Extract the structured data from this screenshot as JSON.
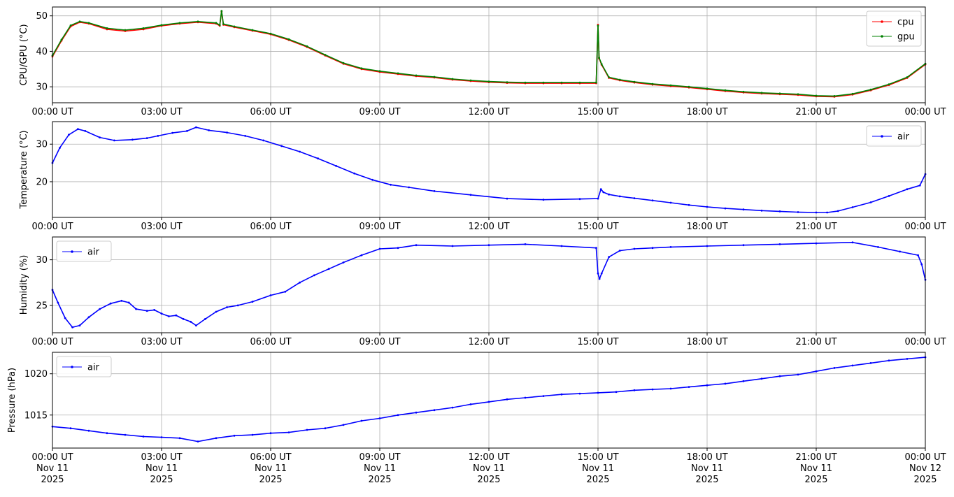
{
  "chart_data": [
    {
      "type": "line",
      "ylabel": "CPU/GPU (°C)",
      "ylim": [
        25.5,
        52.5
      ],
      "yticks": [
        30,
        40,
        50
      ],
      "grid": true,
      "legend_position": "upper-right",
      "x_tick_labels": [
        "00:00 UT",
        "03:00 UT",
        "06:00 UT",
        "09:00 UT",
        "12:00 UT",
        "15:00 UT",
        "18:00 UT",
        "21:00 UT",
        "00:00 UT"
      ],
      "series": [
        {
          "name": "cpu",
          "color": "#ff0000",
          "x": [
            0,
            0.25,
            0.5,
            0.75,
            1,
            1.5,
            2,
            2.5,
            3,
            3.5,
            4,
            4.5,
            4.6,
            4.65,
            4.7,
            5,
            5.5,
            6,
            6.5,
            7,
            7.5,
            8,
            8.5,
            9,
            9.5,
            10,
            10.5,
            11,
            11.5,
            12,
            12.5,
            13,
            13.5,
            14,
            14.5,
            14.95,
            15,
            15.03,
            15.1,
            15.3,
            15.6,
            16,
            16.5,
            17,
            17.5,
            18,
            18.5,
            19,
            19.5,
            20,
            20.5,
            21,
            21.5,
            22,
            22.5,
            23,
            23.5,
            24
          ],
          "y": [
            38.5,
            43,
            47,
            48.2,
            47.8,
            46.2,
            45.7,
            46.2,
            47.2,
            47.8,
            48.2,
            47.8,
            47.2,
            51.2,
            47.5,
            46.8,
            45.8,
            44.8,
            43.2,
            41.2,
            38.8,
            36.5,
            35,
            34.2,
            33.6,
            33,
            32.6,
            32,
            31.6,
            31.3,
            31.1,
            31,
            31,
            31,
            31,
            31,
            47.5,
            38,
            36.2,
            32.5,
            31.8,
            31.2,
            30.6,
            30.2,
            29.8,
            29.3,
            28.8,
            28.4,
            28.1,
            27.9,
            27.7,
            27.3,
            27.2,
            27.8,
            29,
            30.5,
            32.5,
            36.3
          ]
        },
        {
          "name": "gpu",
          "color": "#008000",
          "x": [
            0,
            0.25,
            0.5,
            0.75,
            1,
            1.5,
            2,
            2.5,
            3,
            3.5,
            4,
            4.5,
            4.6,
            4.65,
            4.7,
            5,
            5.5,
            6,
            6.5,
            7,
            7.5,
            8,
            8.5,
            9,
            9.5,
            10,
            10.5,
            11,
            11.5,
            12,
            12.5,
            13,
            13.5,
            14,
            14.5,
            14.95,
            15,
            15.03,
            15.1,
            15.3,
            15.6,
            16,
            16.5,
            17,
            17.5,
            18,
            18.5,
            19,
            19.5,
            20,
            20.5,
            21,
            21.5,
            22,
            22.5,
            23,
            23.5,
            24
          ],
          "y": [
            38.8,
            43.3,
            47.3,
            48.4,
            48,
            46.5,
            46,
            46.5,
            47.4,
            48,
            48.4,
            48,
            47.4,
            51.4,
            47.7,
            47,
            46,
            45,
            43.4,
            41.4,
            39,
            36.7,
            35.2,
            34.4,
            33.8,
            33.2,
            32.8,
            32.2,
            31.8,
            31.5,
            31.3,
            31.2,
            31.2,
            31.2,
            31.2,
            31.2,
            47.2,
            38.2,
            36.4,
            32.7,
            32,
            31.4,
            30.8,
            30.4,
            30,
            29.5,
            29,
            28.6,
            28.3,
            28.1,
            27.9,
            27.5,
            27.4,
            28,
            29.2,
            30.7,
            32.7,
            36.5
          ]
        }
      ]
    },
    {
      "type": "line",
      "ylabel": "Temperature (°C)",
      "ylim": [
        10.5,
        36
      ],
      "yticks": [
        20,
        30
      ],
      "grid": true,
      "legend_position": "upper-right",
      "x_tick_labels": [
        "00:00 UT",
        "03:00 UT",
        "06:00 UT",
        "09:00 UT",
        "12:00 UT",
        "15:00 UT",
        "18:00 UT",
        "21:00 UT",
        "00:00 UT"
      ],
      "series": [
        {
          "name": "air",
          "color": "#0000ff",
          "x": [
            0,
            0.2,
            0.45,
            0.7,
            0.9,
            1.3,
            1.7,
            2.2,
            2.6,
            2.9,
            3.3,
            3.7,
            3.95,
            4.3,
            4.8,
            5.3,
            5.8,
            6.3,
            6.8,
            7.3,
            7.8,
            8.3,
            8.8,
            9.3,
            9.8,
            10.5,
            11.5,
            12.5,
            13.5,
            14.5,
            15,
            15.08,
            15.15,
            15.3,
            15.6,
            16,
            16.5,
            17,
            17.5,
            18,
            18.5,
            19,
            19.5,
            20,
            20.5,
            21,
            21.3,
            21.6,
            22,
            22.5,
            23,
            23.5,
            23.85,
            24
          ],
          "y": [
            25,
            29,
            32.5,
            34,
            33.5,
            31.8,
            31,
            31.2,
            31.6,
            32.2,
            33,
            33.5,
            34.5,
            33.7,
            33.1,
            32.2,
            31,
            29.5,
            28,
            26.2,
            24.2,
            22.2,
            20.5,
            19.2,
            18.5,
            17.5,
            16.5,
            15.5,
            15.2,
            15.4,
            15.5,
            18,
            17.2,
            16.6,
            16.1,
            15.6,
            15,
            14.4,
            13.8,
            13.3,
            12.9,
            12.6,
            12.3,
            12.1,
            11.9,
            11.8,
            11.8,
            12.2,
            13.2,
            14.5,
            16.2,
            18,
            19,
            22
          ]
        }
      ]
    },
    {
      "type": "line",
      "ylabel": "Humidity (%)",
      "ylim": [
        22,
        32.5
      ],
      "yticks": [
        25,
        30
      ],
      "grid": true,
      "legend_position": "upper-left",
      "x_tick_labels": [
        "00:00 UT",
        "03:00 UT",
        "06:00 UT",
        "09:00 UT",
        "12:00 UT",
        "15:00 UT",
        "18:00 UT",
        "21:00 UT",
        "00:00 UT"
      ],
      "series": [
        {
          "name": "air",
          "color": "#0000ff",
          "x": [
            0,
            0.15,
            0.35,
            0.55,
            0.75,
            1,
            1.3,
            1.6,
            1.9,
            2.1,
            2.3,
            2.6,
            2.8,
            3,
            3.2,
            3.4,
            3.6,
            3.8,
            3.95,
            4.2,
            4.5,
            4.8,
            5.1,
            5.5,
            6,
            6.4,
            6.8,
            7.2,
            7.6,
            8,
            8.5,
            9,
            9.5,
            10,
            11,
            12,
            13,
            14,
            14.95,
            15,
            15.04,
            15.1,
            15.3,
            15.6,
            16,
            16.5,
            17,
            18,
            19,
            20,
            21,
            22,
            22.7,
            23.3,
            23.8,
            23.9,
            24
          ],
          "y": [
            26.7,
            25.3,
            23.6,
            22.6,
            22.8,
            23.7,
            24.6,
            25.2,
            25.5,
            25.3,
            24.6,
            24.4,
            24.5,
            24.1,
            23.8,
            23.9,
            23.5,
            23.2,
            22.8,
            23.5,
            24.3,
            24.8,
            25,
            25.4,
            26.1,
            26.5,
            27.5,
            28.3,
            29,
            29.7,
            30.5,
            31.2,
            31.3,
            31.6,
            31.5,
            31.6,
            31.7,
            31.5,
            31.3,
            28.5,
            27.9,
            28.5,
            30.3,
            31,
            31.2,
            31.3,
            31.4,
            31.5,
            31.6,
            31.7,
            31.8,
            31.9,
            31.4,
            30.9,
            30.5,
            29.5,
            27.8
          ]
        }
      ]
    },
    {
      "type": "line",
      "ylabel": "Pressure (hPa)",
      "ylim": [
        1011,
        1022.6
      ],
      "yticks": [
        1015,
        1020
      ],
      "grid": true,
      "legend_position": "upper-left",
      "x_tick_labels": [
        [
          "00:00 UT",
          "Nov 11",
          "2025"
        ],
        [
          "03:00 UT",
          "Nov 11",
          "2025"
        ],
        [
          "06:00 UT",
          "Nov 11",
          "2025"
        ],
        [
          "09:00 UT",
          "Nov 11",
          "2025"
        ],
        [
          "12:00 UT",
          "Nov 11",
          "2025"
        ],
        [
          "15:00 UT",
          "Nov 11",
          "2025"
        ],
        [
          "18:00 UT",
          "Nov 11",
          "2025"
        ],
        [
          "21:00 UT",
          "Nov 11",
          "2025"
        ],
        [
          "00:00 UT",
          "Nov 12",
          "2025"
        ]
      ],
      "series": [
        {
          "name": "air",
          "color": "#0000ff",
          "x": [
            0,
            0.5,
            1,
            1.5,
            2,
            2.5,
            3,
            3.5,
            4,
            4.5,
            5,
            5.5,
            6,
            6.5,
            7,
            7.5,
            8,
            8.5,
            9,
            9.5,
            10,
            10.5,
            11,
            11.5,
            12,
            12.5,
            13,
            13.5,
            14,
            14.5,
            15,
            15.5,
            16,
            16.5,
            17,
            17.5,
            18,
            18.5,
            19,
            19.5,
            20,
            20.5,
            21,
            21.5,
            22,
            22.5,
            23,
            23.5,
            24
          ],
          "y": [
            1013.6,
            1013.4,
            1013.1,
            1012.8,
            1012.6,
            1012.4,
            1012.3,
            1012.2,
            1011.8,
            1012.2,
            1012.5,
            1012.6,
            1012.8,
            1012.9,
            1013.2,
            1013.4,
            1013.8,
            1014.3,
            1014.6,
            1015,
            1015.3,
            1015.6,
            1015.9,
            1016.3,
            1016.6,
            1016.9,
            1017.1,
            1017.3,
            1017.5,
            1017.6,
            1017.7,
            1017.8,
            1018,
            1018.1,
            1018.2,
            1018.4,
            1018.6,
            1018.8,
            1019.1,
            1019.4,
            1019.7,
            1019.9,
            1020.3,
            1020.7,
            1021,
            1021.3,
            1021.6,
            1021.8,
            1022
          ]
        }
      ]
    }
  ]
}
